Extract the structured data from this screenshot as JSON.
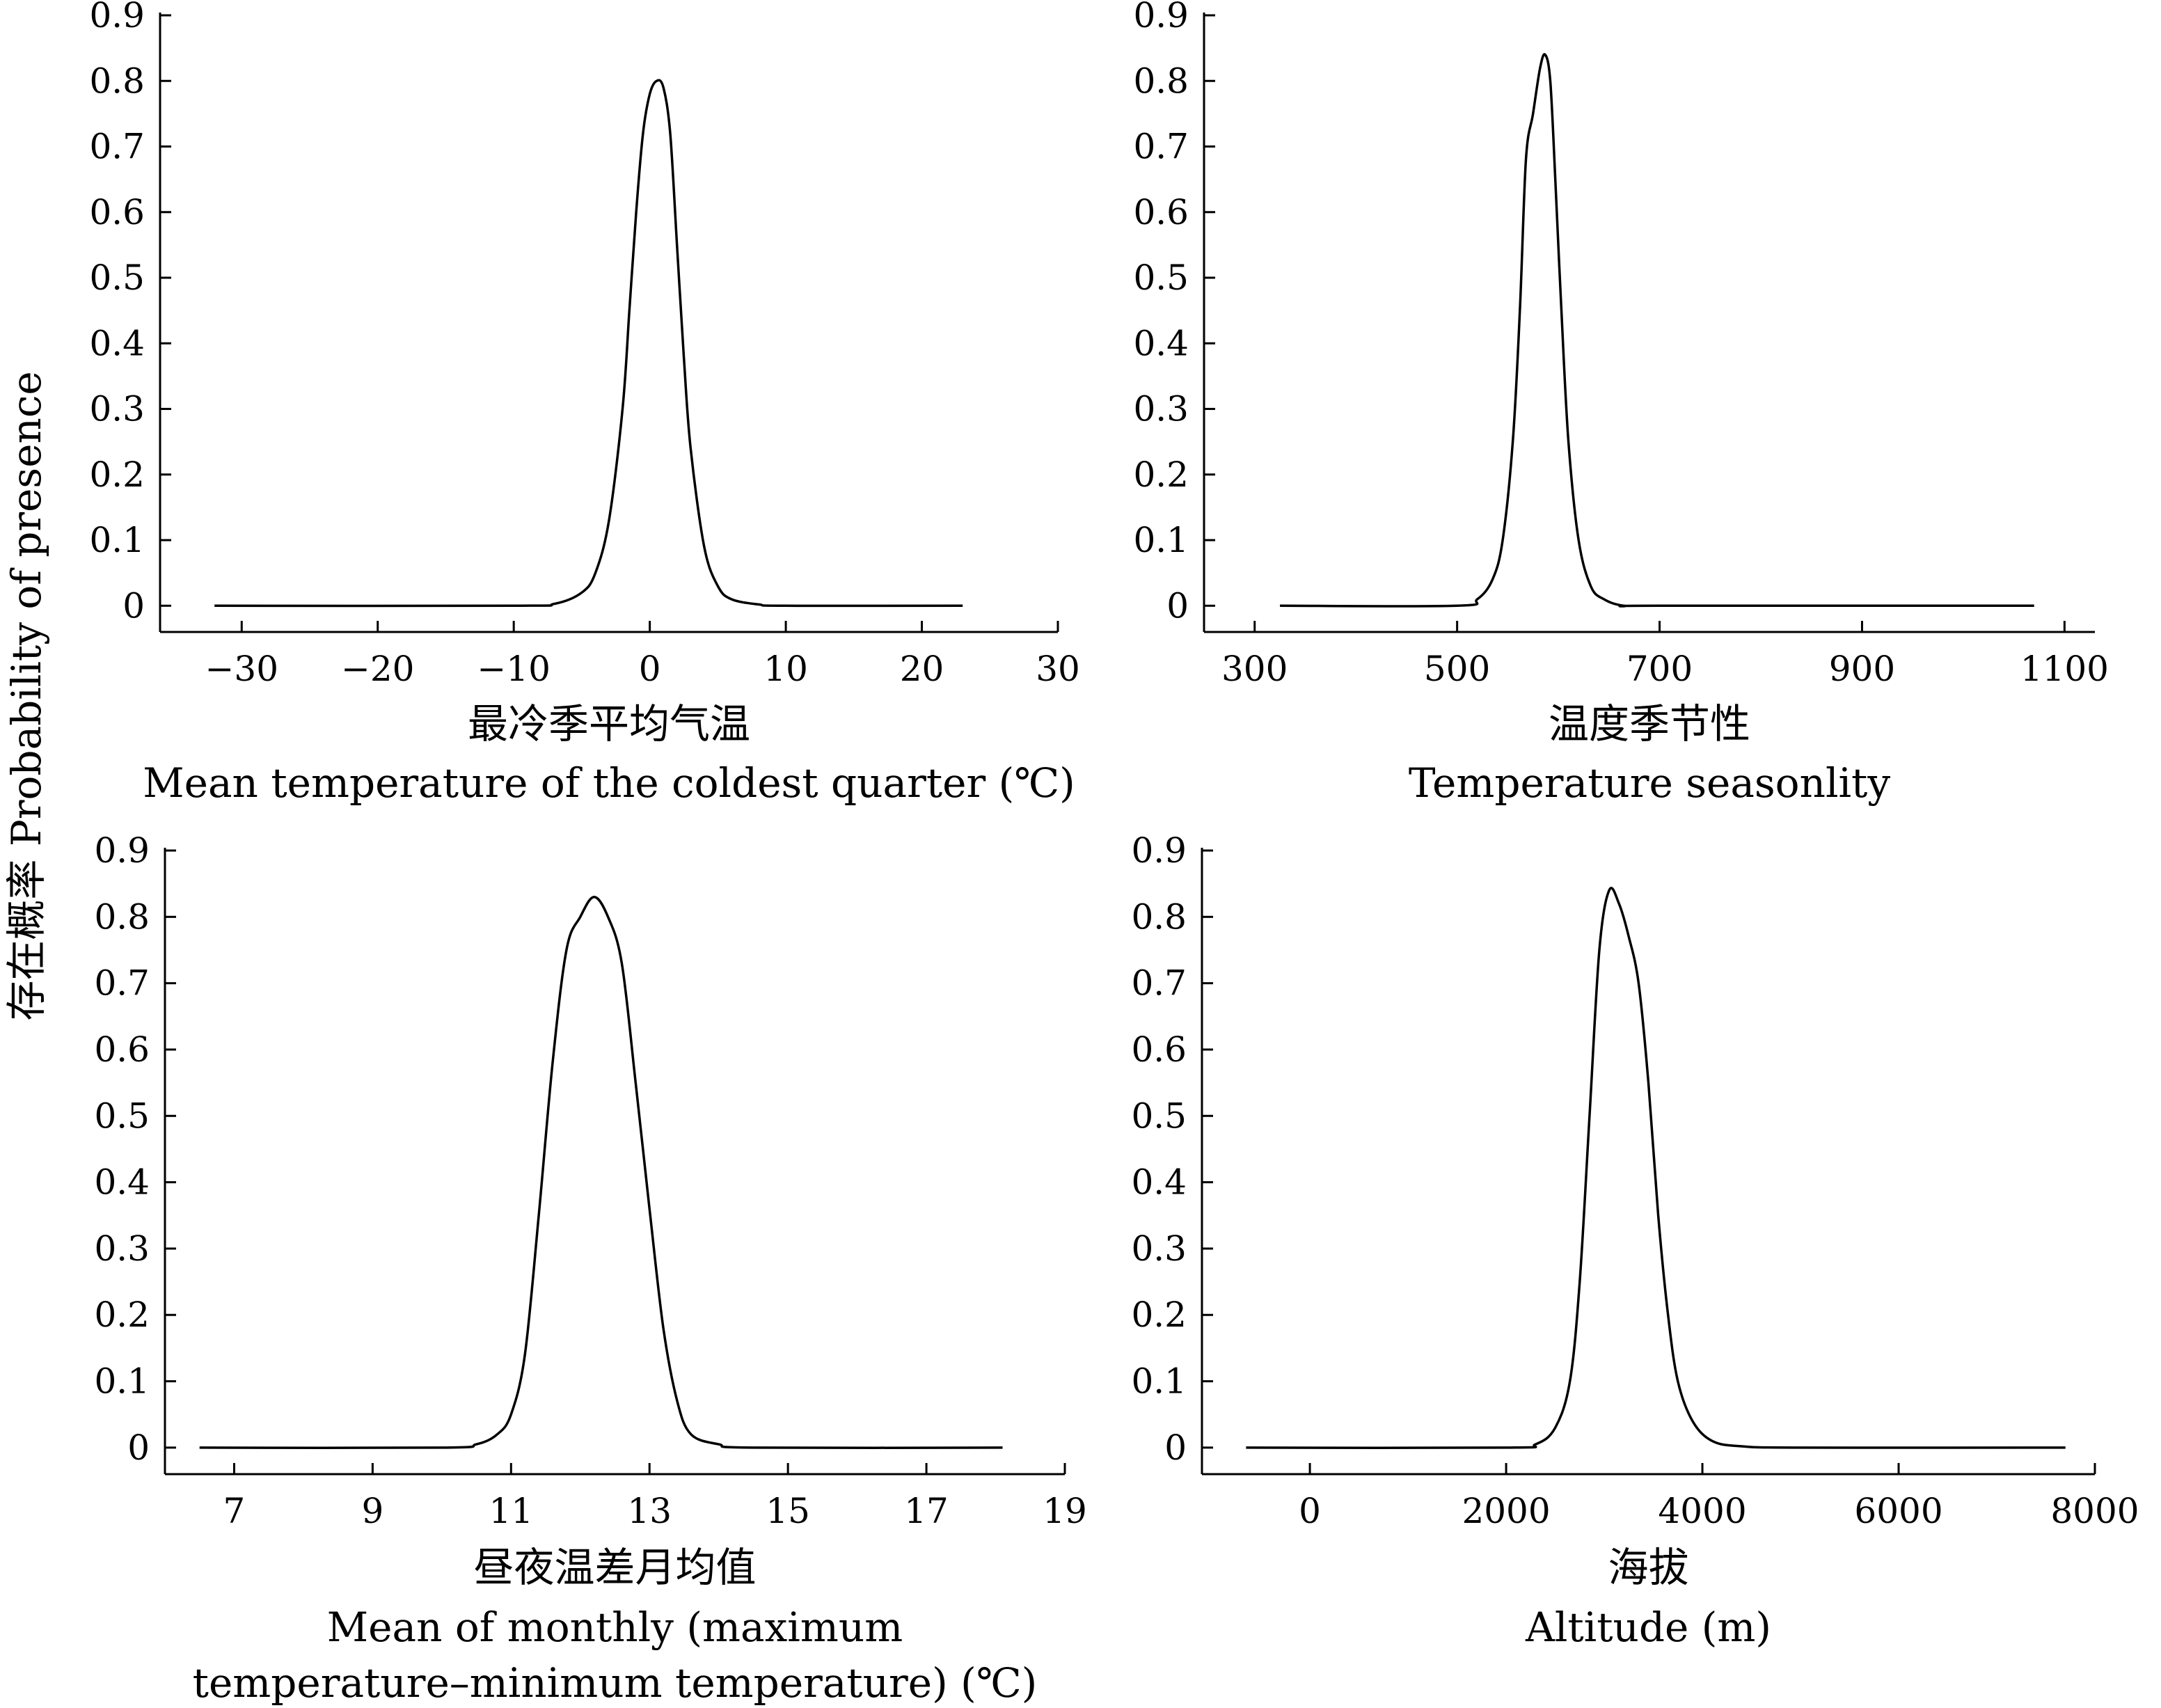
{
  "figure": {
    "ylabel": "存在概率 Probability of  presence"
  },
  "chart_data": [
    {
      "type": "line",
      "xlabel_cn": "最冷季平均气温",
      "xlabel_en": [
        "Mean temperature of the coldest quarter (℃)"
      ],
      "xlim": [
        -36,
        30
      ],
      "ylim": [
        -0.04,
        0.9
      ],
      "xticks": [
        -30,
        -20,
        -10,
        0,
        10,
        20,
        30
      ],
      "xtick_labels": [
        "−30",
        "−20",
        "−10",
        "0",
        "10",
        "20",
        "30"
      ],
      "yticks": [
        0,
        0.1,
        0.2,
        0.3,
        0.4,
        0.5,
        0.6,
        0.7,
        0.8,
        0.9
      ],
      "ytick_labels": [
        "0",
        "0.1",
        "0.2",
        "0.3",
        "0.4",
        "0.5",
        "0.6",
        "0.7",
        "0.8",
        "0.9"
      ],
      "series": [
        {
          "x": [
            -32,
            -10,
            -7,
            -5,
            -4,
            -3,
            -2,
            -1.5,
            -1,
            -0.5,
            0,
            0.5,
            1,
            1.5,
            2,
            2.5,
            3,
            4,
            5,
            6,
            8,
            10,
            23
          ],
          "y": [
            0,
            0,
            0.003,
            0.02,
            0.05,
            0.13,
            0.3,
            0.45,
            0.6,
            0.72,
            0.78,
            0.8,
            0.79,
            0.72,
            0.55,
            0.38,
            0.24,
            0.09,
            0.03,
            0.01,
            0.002,
            0,
            0
          ]
        }
      ]
    },
    {
      "type": "line",
      "xlabel_cn": "温度季节性",
      "xlabel_en": [
        "Temperature seasonlity"
      ],
      "xlim": [
        250,
        1130
      ],
      "ylim": [
        -0.04,
        0.9
      ],
      "xticks": [
        300,
        500,
        700,
        900,
        1100
      ],
      "xtick_labels": [
        "300",
        "500",
        "700",
        "900",
        "1100"
      ],
      "yticks": [
        0,
        0.1,
        0.2,
        0.3,
        0.4,
        0.5,
        0.6,
        0.7,
        0.8,
        0.9
      ],
      "ytick_labels": [
        "0",
        "0.1",
        "0.2",
        "0.3",
        "0.4",
        "0.5",
        "0.6",
        "0.7",
        "0.8",
        "0.9"
      ],
      "series": [
        {
          "x": [
            325,
            500,
            520,
            535,
            545,
            555,
            562,
            568,
            575,
            582,
            587,
            592,
            597,
            603,
            610,
            620,
            632,
            645,
            665,
            700,
            1070
          ],
          "y": [
            0,
            0,
            0.01,
            0.04,
            0.1,
            0.25,
            0.45,
            0.68,
            0.75,
            0.82,
            0.84,
            0.8,
            0.65,
            0.45,
            0.25,
            0.1,
            0.03,
            0.01,
            0,
            0,
            0
          ]
        }
      ]
    },
    {
      "type": "line",
      "xlabel_cn": "昼夜温差月均值",
      "xlabel_en": [
        "Mean of monthly (maximum",
        "temperature–minimum temperature) (℃)"
      ],
      "xlim": [
        6,
        19
      ],
      "ylim": [
        -0.04,
        0.9
      ],
      "xticks": [
        7,
        9,
        11,
        13,
        15,
        17,
        19
      ],
      "xtick_labels": [
        "7",
        "9",
        "11",
        "13",
        "15",
        "17",
        "19"
      ],
      "yticks": [
        0,
        0.1,
        0.2,
        0.3,
        0.4,
        0.5,
        0.6,
        0.7,
        0.8,
        0.9
      ],
      "ytick_labels": [
        "0",
        "0.1",
        "0.2",
        "0.3",
        "0.4",
        "0.5",
        "0.6",
        "0.7",
        "0.8",
        "0.9"
      ],
      "series": [
        {
          "x": [
            6.5,
            10,
            10.5,
            10.8,
            11,
            11.2,
            11.4,
            11.6,
            11.8,
            12,
            12.2,
            12.4,
            12.6,
            12.8,
            13,
            13.2,
            13.4,
            13.6,
            14,
            14.5,
            18.1
          ],
          "y": [
            0,
            0,
            0.005,
            0.02,
            0.05,
            0.14,
            0.35,
            0.58,
            0.75,
            0.8,
            0.83,
            0.8,
            0.73,
            0.55,
            0.36,
            0.18,
            0.07,
            0.02,
            0.005,
            0,
            0
          ]
        }
      ]
    },
    {
      "type": "line",
      "xlabel_cn": "海拔",
      "xlabel_en": [
        "Altitude (m)"
      ],
      "xlim": [
        -1100,
        8000
      ],
      "ylim": [
        -0.04,
        0.9
      ],
      "xticks": [
        0,
        2000,
        4000,
        6000,
        8000
      ],
      "xtick_labels": [
        "0",
        "2000",
        "4000",
        "6000",
        "8000"
      ],
      "yticks": [
        0,
        0.1,
        0.2,
        0.3,
        0.4,
        0.5,
        0.6,
        0.7,
        0.8,
        0.9
      ],
      "ytick_labels": [
        "0",
        "0.1",
        "0.2",
        "0.3",
        "0.4",
        "0.5",
        "0.6",
        "0.7",
        "0.8",
        "0.9"
      ],
      "series": [
        {
          "x": [
            -650,
            2000,
            2300,
            2500,
            2650,
            2750,
            2850,
            2950,
            3050,
            3150,
            3250,
            3350,
            3450,
            3550,
            3650,
            3750,
            3900,
            4100,
            4400,
            5000,
            7700
          ],
          "y": [
            0,
            0,
            0.005,
            0.03,
            0.1,
            0.25,
            0.5,
            0.75,
            0.84,
            0.82,
            0.77,
            0.7,
            0.55,
            0.35,
            0.2,
            0.1,
            0.04,
            0.01,
            0.002,
            0,
            0
          ]
        }
      ]
    }
  ]
}
